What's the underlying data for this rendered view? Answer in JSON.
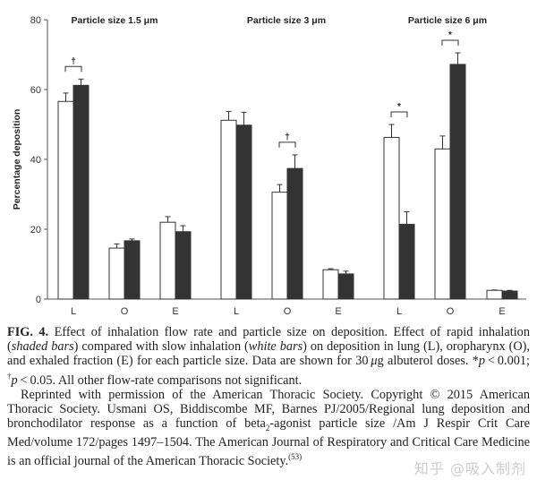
{
  "chart_data": {
    "type": "bar",
    "ylabel": "Percentage deposition",
    "ylim": [
      0,
      80
    ],
    "yticks": [
      0,
      20,
      40,
      60,
      80
    ],
    "categories": [
      "L",
      "O",
      "E"
    ],
    "legend": {
      "white": "slow inhalation",
      "shaded": "rapid inhalation"
    },
    "colors": {
      "white": "#ffffff",
      "shaded": "#333333"
    },
    "panels": [
      {
        "title": "Particle size 1.5 μm",
        "white": [
          56.6,
          14.6,
          22.0
        ],
        "white_err": [
          2.4,
          1.2,
          1.6
        ],
        "shaded": [
          61.2,
          16.7,
          19.3
        ],
        "shaded_err": [
          1.8,
          0.5,
          1.7
        ],
        "significance": [
          "†",
          "",
          ""
        ]
      },
      {
        "title": "Particle size 3 μm",
        "white": [
          51.2,
          30.6,
          8.4
        ],
        "white_err": [
          2.5,
          2.2,
          0.3
        ],
        "shaded": [
          49.8,
          37.4,
          7.2
        ],
        "shaded_err": [
          3.7,
          3.9,
          0.8
        ],
        "significance": [
          "",
          "†",
          ""
        ]
      },
      {
        "title": "Particle size 6 μm",
        "white": [
          46.3,
          43.0,
          2.5
        ],
        "white_err": [
          3.7,
          3.7,
          0.1
        ],
        "shaded": [
          21.4,
          67.2,
          2.3
        ],
        "shaded_err": [
          3.6,
          3.3,
          0.2
        ],
        "significance": [
          "*",
          "*",
          ""
        ]
      }
    ]
  },
  "caption": {
    "fig_label": "FIG. 4.",
    "p1_a": "  Effect of inhalation flow rate and particle size on deposition. Effect of rapid inhalation (",
    "p1_b": "shaded bars",
    "p1_c": ") compared with slow inhalation (",
    "p1_d": "white bars",
    "p1_e": ") on deposition in lung (L), oropharynx (O), and exhaled fraction (E) for each particle size. Data are shown for 30 ",
    "p1_f": "μ",
    "p1_g": "g albuterol doses. *",
    "p1_h": "p",
    "p1_i": " < 0.001; ",
    "p1_j": "†",
    "p1_k": "p",
    "p1_l": " < 0.05. All other flow-rate comparisons not significant.",
    "p2_a": "Reprinted with permission of the American Thoracic Society. Copyright © 2015 American Thoracic Society. Usmani OS, Biddiscombe MF, Barnes PJ/2005/Regional lung deposition and bronchodilator response as a function of beta",
    "p2_sub": "2",
    "p2_b": "-agonist particle size /Am J Respir Crit Care Med/volume 172/pages 1497–1504. The American Journal of Respiratory and Critical Care Medicine is an official journal of the American Thoracic Society.",
    "p2_ref": "(53)"
  },
  "watermark": "知乎 @吸入制剂"
}
